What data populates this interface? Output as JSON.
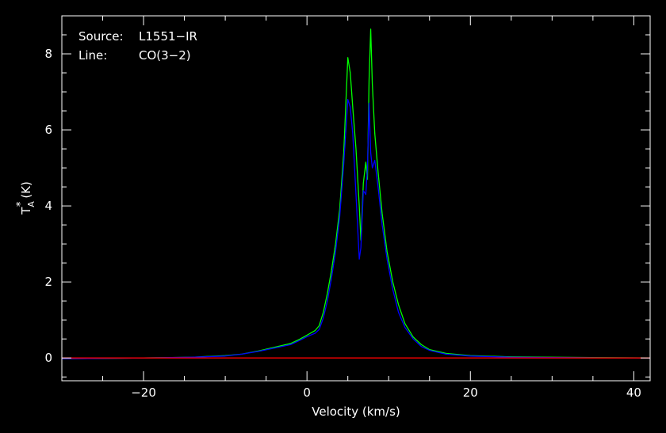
{
  "chart_data": {
    "type": "line",
    "title": "",
    "xlabel": "Velocity (km/s)",
    "ylabel": "T",
    "ylabel_sub": "A",
    "ylabel_sup": "*",
    "ylabel_unit": "(K)",
    "xlim": [
      -30,
      42
    ],
    "ylim": [
      -0.6,
      9.0
    ],
    "x_ticks": [
      -20,
      0,
      20,
      40
    ],
    "x_tick_labels": [
      "−20",
      "0",
      "20",
      "40"
    ],
    "y_ticks": [
      0,
      2,
      4,
      6,
      8
    ],
    "y_tick_labels": [
      "0",
      "2",
      "4",
      "6",
      "8"
    ],
    "grid": false,
    "background": "#000000",
    "annotations": {
      "source_key": "Source:",
      "source_value": "L1551−IR",
      "line_key": "Line:",
      "line_value": "CO(3−2)"
    },
    "series": [
      {
        "color": "#00ff00",
        "points": [
          [
            -30,
            -0.02
          ],
          [
            -20,
            0.0
          ],
          [
            -14,
            0.02
          ],
          [
            -10,
            0.06
          ],
          [
            -8,
            0.1
          ],
          [
            -6,
            0.18
          ],
          [
            -4,
            0.28
          ],
          [
            -2,
            0.38
          ],
          [
            -1,
            0.48
          ],
          [
            0,
            0.6
          ],
          [
            1,
            0.72
          ],
          [
            1.5,
            0.85
          ],
          [
            2,
            1.2
          ],
          [
            2.5,
            1.7
          ],
          [
            3,
            2.3
          ],
          [
            3.5,
            3.0
          ],
          [
            4,
            3.9
          ],
          [
            4.5,
            5.4
          ],
          [
            5,
            7.9
          ],
          [
            5.3,
            7.5
          ],
          [
            5.6,
            6.6
          ],
          [
            6,
            5.5
          ],
          [
            6.4,
            4.0
          ],
          [
            6.6,
            3.1
          ],
          [
            6.9,
            4.6
          ],
          [
            7.2,
            5.15
          ],
          [
            7.4,
            4.7
          ],
          [
            7.6,
            7.3
          ],
          [
            7.8,
            8.65
          ],
          [
            8.0,
            7.2
          ],
          [
            8.3,
            5.9
          ],
          [
            8.7,
            4.9
          ],
          [
            9.2,
            3.8
          ],
          [
            9.8,
            2.8
          ],
          [
            10.5,
            2.0
          ],
          [
            11.2,
            1.4
          ],
          [
            12,
            0.9
          ],
          [
            13,
            0.55
          ],
          [
            14,
            0.35
          ],
          [
            15,
            0.22
          ],
          [
            17,
            0.12
          ],
          [
            20,
            0.06
          ],
          [
            25,
            0.03
          ],
          [
            30,
            0.02
          ],
          [
            42,
            0.0
          ]
        ]
      },
      {
        "color": "#0000ff",
        "points": [
          [
            -30,
            -0.02
          ],
          [
            -20,
            0.0
          ],
          [
            -14,
            0.02
          ],
          [
            -10,
            0.05
          ],
          [
            -8,
            0.1
          ],
          [
            -6,
            0.17
          ],
          [
            -4,
            0.26
          ],
          [
            -2,
            0.35
          ],
          [
            -1,
            0.45
          ],
          [
            0,
            0.56
          ],
          [
            1,
            0.65
          ],
          [
            1.5,
            0.75
          ],
          [
            2,
            1.05
          ],
          [
            2.5,
            1.5
          ],
          [
            3,
            2.1
          ],
          [
            3.5,
            2.8
          ],
          [
            4,
            3.7
          ],
          [
            4.5,
            5.1
          ],
          [
            5,
            6.8
          ],
          [
            5.3,
            6.6
          ],
          [
            5.6,
            5.9
          ],
          [
            6,
            4.3
          ],
          [
            6.4,
            2.6
          ],
          [
            6.6,
            2.9
          ],
          [
            6.9,
            4.4
          ],
          [
            7.2,
            4.3
          ],
          [
            7.4,
            5.0
          ],
          [
            7.6,
            6.7
          ],
          [
            7.8,
            5.4
          ],
          [
            8.0,
            5.0
          ],
          [
            8.3,
            5.2
          ],
          [
            8.7,
            4.5
          ],
          [
            9.2,
            3.5
          ],
          [
            9.8,
            2.6
          ],
          [
            10.5,
            1.8
          ],
          [
            11.2,
            1.2
          ],
          [
            12,
            0.8
          ],
          [
            13,
            0.5
          ],
          [
            14,
            0.3
          ],
          [
            15,
            0.2
          ],
          [
            17,
            0.1
          ],
          [
            20,
            0.05
          ],
          [
            25,
            0.02
          ],
          [
            30,
            0.01
          ],
          [
            42,
            0.0
          ]
        ]
      },
      {
        "color": "#ff0000",
        "points": [
          [
            -30,
            0.0
          ],
          [
            42,
            0.0
          ]
        ]
      }
    ]
  }
}
